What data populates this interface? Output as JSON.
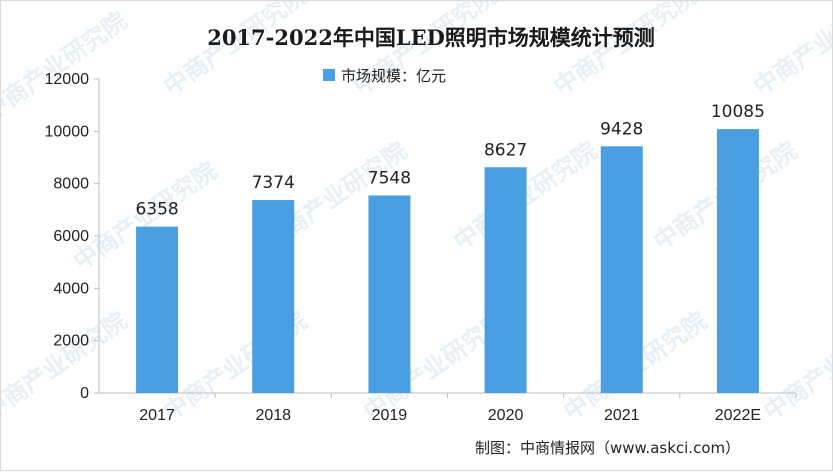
{
  "chart_data": {
    "type": "bar",
    "title": "2017-2022年中国LED照明市场规模统计预测",
    "categories": [
      "2017",
      "2018",
      "2019",
      "2020",
      "2021",
      "2022E"
    ],
    "series": [
      {
        "name": "市场规模：亿元",
        "values": [
          6358,
          7374,
          7548,
          8627,
          9428,
          10085
        ],
        "color": "#4a9fe3"
      }
    ],
    "yticks": [
      "0",
      "2000",
      "4000",
      "6000",
      "8000",
      "10000",
      "12000"
    ],
    "ylim": [
      0,
      12000
    ],
    "grid": false,
    "legend_position": "top-center"
  },
  "source": "制图：中商情报网（www.askci.com）",
  "watermark": "中商产业研究院",
  "colors": {
    "bar": "#4a9fe3",
    "axis": "#bfbfbf",
    "watermark": "#d5e3f1"
  }
}
